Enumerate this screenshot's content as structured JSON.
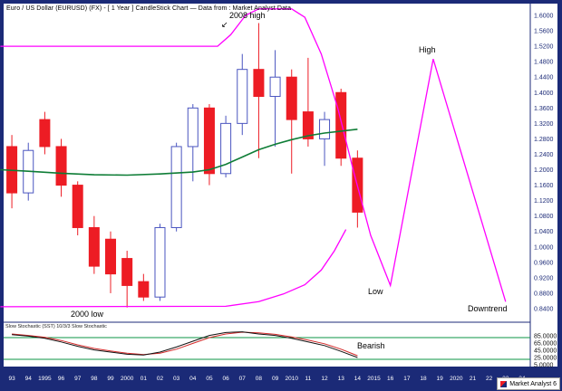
{
  "window": {
    "title": "Euro / US Dollar (EURUSD) (FX) -  [ 1 Year ] CandleStick Chart — Data from : Market Analyst Data",
    "watermark": "Market Analyst 6"
  },
  "icons": {
    "trend_arrow": "↙"
  },
  "colors": {
    "frame": "#1b2a77",
    "plot_bg": "#ffffff",
    "down_candle": "#ed1c24",
    "up_candle_fill": "#ffffff",
    "up_candle_border": "#4a55c0",
    "magenta": "#ff00ff",
    "ma_green": "#0e7d36",
    "stoch_level_green": "#0b9444",
    "stoch_k": "#111111",
    "stoch_d": "#d42a2a",
    "axis_text": "#1b2a77",
    "x_axis_text": "#ffffff"
  },
  "price_axis": {
    "labels": [
      "1.6000",
      "1.5600",
      "1.5200",
      "1.4800",
      "1.4400",
      "1.4000",
      "1.3600",
      "1.3200",
      "1.2800",
      "1.2400",
      "1.2000",
      "1.1600",
      "1.1200",
      "1.0800",
      "1.0400",
      "1.0000",
      "0.9600",
      "0.9200",
      "0.8800",
      "0.8400"
    ]
  },
  "stoch_axis": {
    "labels": [
      "85.0000",
      "65.0000",
      "45.0000",
      "25.0000",
      "5.0000"
    ]
  },
  "x_axis": {
    "labels": [
      "93",
      "94",
      "1995",
      "96",
      "97",
      "98",
      "99",
      "2000",
      "01",
      "02",
      "03",
      "04",
      "05",
      "06",
      "07",
      "08",
      "09",
      "2010",
      "11",
      "12",
      "13",
      "14",
      "2015",
      "16",
      "17",
      "18",
      "19",
      "2020",
      "21",
      "22",
      "23",
      "24"
    ]
  },
  "stoch_panel": {
    "label": "Slow Stochastic (SST) 10/3/3 Slow Stochastic"
  },
  "annotations": {
    "high_2008": "2008 high",
    "low_2000": "2000 low",
    "high": "High",
    "low": "Low",
    "downtrend": "Downtrend",
    "bearish": "Bearish"
  },
  "chart_data": {
    "type": "candlestick",
    "title": "Euro / US Dollar (EURUSD) yearly candles with stochastic sub-panel and projected path",
    "ylim": [
      0.84,
      1.6
    ],
    "stoch_ylim": [
      0,
      100
    ],
    "grid": false,
    "candles": [
      {
        "x": "93",
        "o": 1.26,
        "h": 1.29,
        "l": 1.1,
        "c": 1.14
      },
      {
        "x": "94",
        "o": 1.14,
        "h": 1.27,
        "l": 1.12,
        "c": 1.25
      },
      {
        "x": "95",
        "o": 1.33,
        "h": 1.35,
        "l": 1.24,
        "c": 1.26
      },
      {
        "x": "96",
        "o": 1.26,
        "h": 1.28,
        "l": 1.13,
        "c": 1.16
      },
      {
        "x": "97",
        "o": 1.16,
        "h": 1.17,
        "l": 1.03,
        "c": 1.05
      },
      {
        "x": "98",
        "o": 1.05,
        "h": 1.08,
        "l": 0.93,
        "c": 0.95
      },
      {
        "x": "99",
        "o": 1.02,
        "h": 1.04,
        "l": 0.88,
        "c": 0.93
      },
      {
        "x": "2000",
        "o": 0.97,
        "h": 0.99,
        "l": 0.843,
        "c": 0.9
      },
      {
        "x": "01",
        "o": 0.91,
        "h": 0.93,
        "l": 0.86,
        "c": 0.87
      },
      {
        "x": "02",
        "o": 0.87,
        "h": 1.06,
        "l": 0.86,
        "c": 1.05
      },
      {
        "x": "03",
        "o": 1.05,
        "h": 1.27,
        "l": 1.04,
        "c": 1.26
      },
      {
        "x": "04",
        "o": 1.26,
        "h": 1.37,
        "l": 1.17,
        "c": 1.36
      },
      {
        "x": "05",
        "o": 1.36,
        "h": 1.37,
        "l": 1.16,
        "c": 1.19
      },
      {
        "x": "06",
        "o": 1.19,
        "h": 1.34,
        "l": 1.18,
        "c": 1.32
      },
      {
        "x": "07",
        "o": 1.32,
        "h": 1.5,
        "l": 1.29,
        "c": 1.46
      },
      {
        "x": "08",
        "o": 1.46,
        "h": 1.58,
        "l": 1.23,
        "c": 1.39
      },
      {
        "x": "09",
        "o": 1.39,
        "h": 1.51,
        "l": 1.26,
        "c": 1.44
      },
      {
        "x": "2010",
        "o": 1.44,
        "h": 1.46,
        "l": 1.19,
        "c": 1.33
      },
      {
        "x": "11",
        "o": 1.35,
        "h": 1.49,
        "l": 1.26,
        "c": 1.28
      },
      {
        "x": "12",
        "o": 1.28,
        "h": 1.35,
        "l": 1.21,
        "c": 1.33
      },
      {
        "x": "13",
        "o": 1.4,
        "h": 1.41,
        "l": 1.21,
        "c": 1.23
      },
      {
        "x": "14",
        "o": 1.23,
        "h": 1.25,
        "l": 1.05,
        "c": 1.09
      }
    ],
    "ma_line": {
      "name": "moving-average",
      "points": [
        [
          1992.3,
          1.2
        ],
        [
          1994,
          1.196
        ],
        [
          1996,
          1.191
        ],
        [
          1998,
          1.187
        ],
        [
          2000,
          1.186
        ],
        [
          2002,
          1.189
        ],
        [
          2004,
          1.194
        ],
        [
          2005,
          1.2
        ],
        [
          2006,
          1.214
        ],
        [
          2007,
          1.233
        ],
        [
          2008,
          1.252
        ],
        [
          2009,
          1.266
        ],
        [
          2010,
          1.278
        ],
        [
          2011,
          1.288
        ],
        [
          2012,
          1.295
        ],
        [
          2013,
          1.3
        ],
        [
          2014,
          1.305
        ]
      ]
    },
    "upper_trend": {
      "name": "resistance-and-projection",
      "points": [
        [
          1992.3,
          1.52
        ],
        [
          2005.5,
          1.52
        ],
        [
          2006.3,
          1.55
        ],
        [
          2007.2,
          1.6
        ],
        [
          2008.0,
          1.617
        ],
        [
          2010.0,
          1.617
        ],
        [
          2010.8,
          1.595
        ],
        [
          2011.8,
          1.5
        ],
        [
          2012.8,
          1.36
        ],
        [
          2013.8,
          1.19
        ],
        [
          2014.8,
          1.03
        ],
        [
          2016.0,
          0.9
        ],
        [
          2018.6,
          1.487
        ],
        [
          2023.0,
          0.858
        ]
      ]
    },
    "lower_trend": {
      "name": "support-curve",
      "points": [
        [
          1992.3,
          0.845
        ],
        [
          2006.0,
          0.846
        ],
        [
          2008.0,
          0.858
        ],
        [
          2009.5,
          0.878
        ],
        [
          2010.8,
          0.902
        ],
        [
          2011.8,
          0.94
        ],
        [
          2012.6,
          0.99
        ],
        [
          2013.3,
          1.045
        ]
      ]
    },
    "stochastic": {
      "k": [
        88,
        84,
        78,
        68,
        56,
        46,
        40,
        34,
        32,
        40,
        54,
        70,
        86,
        94,
        96,
        90,
        86,
        78,
        68,
        58,
        42,
        25
      ],
      "d": [
        90,
        86,
        81,
        72,
        60,
        50,
        43,
        37,
        33,
        37,
        48,
        64,
        80,
        90,
        95,
        93,
        89,
        82,
        73,
        63,
        48,
        30
      ],
      "levels": {
        "overbought": 80,
        "oversold": 20
      }
    }
  }
}
